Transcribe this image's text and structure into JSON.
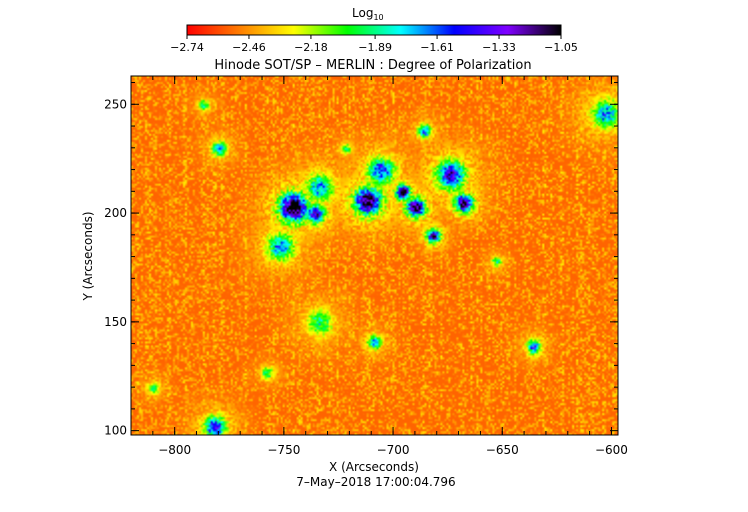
{
  "chart_data": {
    "type": "heatmap",
    "title": "Hinode SOT/SP – MERLIN : Degree of Polarization",
    "xlabel": "X (Arcseconds)",
    "ylabel": "Y (Arcseconds)",
    "xlim": [
      -820,
      -597
    ],
    "ylim": [
      98,
      263
    ],
    "x_ticks": [
      -800,
      -750,
      -700,
      -650,
      -600
    ],
    "x_tick_labels": [
      "−800",
      "−750",
      "−700",
      "−650",
      "−600"
    ],
    "y_ticks": [
      100,
      150,
      200,
      250
    ],
    "y_tick_labels": [
      "100",
      "150",
      "200",
      "250"
    ],
    "footer": "7–May–2018 17:00:04.796",
    "colorbar": {
      "label_main": "Log",
      "label_sub": "10",
      "min": -2.74,
      "max": -1.05,
      "ticks": [
        -2.74,
        -2.46,
        -2.18,
        -1.89,
        -1.61,
        -1.33,
        -1.05
      ],
      "tick_labels": [
        "−2.74",
        "−2.46",
        "−2.18",
        "−1.89",
        "−1.61",
        "−1.33",
        "−1.05"
      ],
      "colors": [
        "#ff0000",
        "#ff7f00",
        "#ffff00",
        "#00ff00",
        "#00ffff",
        "#0000ff",
        "#7f00ff",
        "#000000"
      ]
    },
    "background_level": -2.55,
    "features": [
      {
        "x": -746,
        "y": 203,
        "level": -1.2
      },
      {
        "x": -736,
        "y": 200,
        "level": -1.5
      },
      {
        "x": -734,
        "y": 212,
        "level": -1.8
      },
      {
        "x": -712,
        "y": 206,
        "level": -1.3
      },
      {
        "x": -706,
        "y": 220,
        "level": -1.7
      },
      {
        "x": -696,
        "y": 210,
        "level": -1.2
      },
      {
        "x": -690,
        "y": 203,
        "level": -1.3
      },
      {
        "x": -682,
        "y": 190,
        "level": -1.4
      },
      {
        "x": -674,
        "y": 218,
        "level": -1.5
      },
      {
        "x": -668,
        "y": 205,
        "level": -1.3
      },
      {
        "x": -686,
        "y": 238,
        "level": -1.7
      },
      {
        "x": -752,
        "y": 185,
        "level": -1.8
      },
      {
        "x": -780,
        "y": 230,
        "level": -1.8
      },
      {
        "x": -787,
        "y": 250,
        "level": -2.0
      },
      {
        "x": -722,
        "y": 230,
        "level": -2.1
      },
      {
        "x": -636,
        "y": 139,
        "level": -1.7
      },
      {
        "x": -709,
        "y": 141,
        "level": -1.8
      },
      {
        "x": -758,
        "y": 127,
        "level": -2.0
      },
      {
        "x": -734,
        "y": 150,
        "level": -2.0
      },
      {
        "x": -653,
        "y": 178,
        "level": -2.0
      },
      {
        "x": -603,
        "y": 246,
        "level": -1.8
      },
      {
        "x": -810,
        "y": 120,
        "level": -2.0
      },
      {
        "x": -782,
        "y": 102,
        "level": -1.6
      }
    ]
  }
}
